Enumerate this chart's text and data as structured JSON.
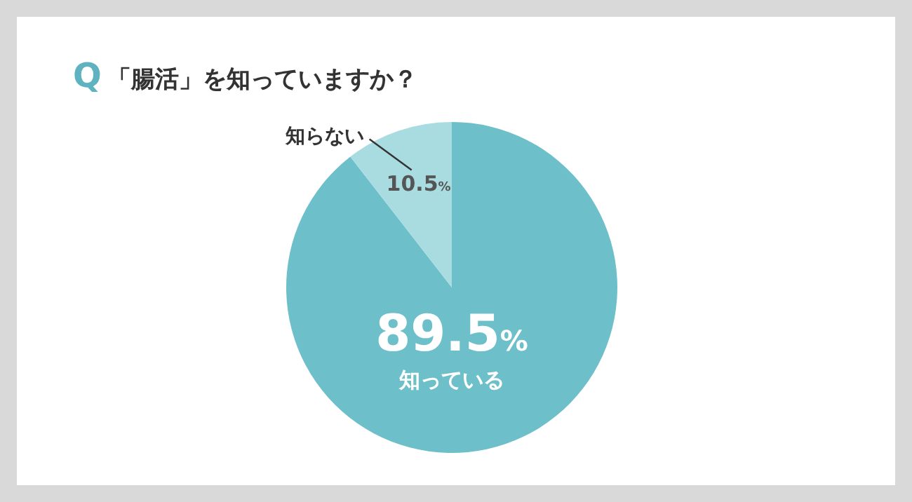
{
  "chart_data": {
    "type": "pie",
    "title": "Q「腸活」を知っていますか？",
    "categories": [
      "知っている",
      "知らない"
    ],
    "values": [
      89.5,
      10.5
    ],
    "value_labels": [
      "89.5%",
      "10.5%"
    ],
    "colors": [
      "#6dbfca",
      "#a9dce1"
    ]
  }
}
